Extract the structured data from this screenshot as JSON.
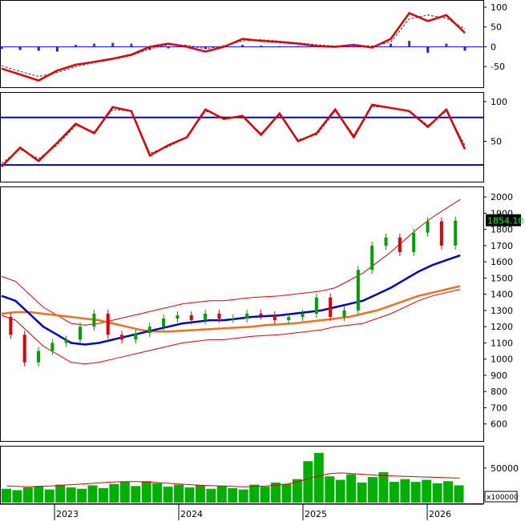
{
  "colors": {
    "background": "#ffffff",
    "frame": "#000000",
    "macd_line": "#e00000",
    "macd_signal": "#333333",
    "hist_pos": "#8b1a8b",
    "hist_neg": "#1a1aff",
    "stoch_k": "#e00000",
    "stoch_d": "#333333",
    "stoch_band": "#0000c0",
    "candle_up": "#00a000",
    "candle_down": "#e00000",
    "bollinger": "#e00000",
    "ma_mid": "#0000c8",
    "ma_long": "#f07020",
    "volume": "#00b000",
    "volume_ma": "#e00000",
    "price_badge_bg": "#000000",
    "price_badge_fg": "#00ff00"
  },
  "chart_data": [
    {
      "type": "line",
      "panel": "macd",
      "ylim": [
        -100,
        110
      ],
      "yticks": [
        "100",
        "50",
        "0",
        "-50"
      ],
      "t": [
        0,
        4,
        8,
        12,
        16,
        20,
        24,
        28,
        32,
        36,
        40,
        44,
        48,
        52,
        56,
        60,
        64,
        68,
        72,
        76,
        80,
        84,
        88,
        92,
        96,
        100
      ],
      "series": [
        {
          "values": [
            -55,
            -70,
            -85,
            -60,
            -45,
            -38,
            -30,
            -20,
            0,
            8,
            0,
            -12,
            0,
            20,
            15,
            12,
            8,
            2,
            0,
            5,
            -2,
            20,
            85,
            65,
            80,
            35
          ]
        },
        {
          "values": [
            -48,
            -62,
            -75,
            -65,
            -50,
            -40,
            -32,
            -22,
            -5,
            5,
            4,
            -5,
            2,
            15,
            18,
            14,
            10,
            5,
            2,
            4,
            2,
            12,
            70,
            80,
            72,
            45
          ]
        }
      ],
      "histogram": [
        -5,
        -8,
        -10,
        -12,
        5,
        8,
        10,
        8,
        -8,
        -4,
        2,
        -6,
        4,
        5,
        3,
        2,
        2,
        1,
        1,
        2,
        -3,
        8,
        15,
        -15,
        8,
        -10
      ]
    },
    {
      "type": "line",
      "panel": "stochastic",
      "ylim": [
        0,
        110
      ],
      "yticks": [
        "100",
        "50"
      ],
      "bands": [
        80,
        20
      ],
      "t": [
        0,
        4,
        8,
        12,
        16,
        20,
        24,
        28,
        32,
        36,
        40,
        44,
        48,
        52,
        56,
        60,
        64,
        68,
        72,
        76,
        80,
        84,
        88,
        92,
        96,
        100
      ],
      "series": [
        {
          "values": [
            18,
            42,
            25,
            48,
            72,
            60,
            93,
            88,
            32,
            45,
            55,
            90,
            78,
            82,
            58,
            85,
            50,
            60,
            90,
            55,
            96,
            92,
            88,
            68,
            90,
            40
          ]
        },
        {
          "values": [
            22,
            40,
            28,
            45,
            70,
            62,
            90,
            88,
            35,
            43,
            55,
            88,
            80,
            80,
            60,
            83,
            52,
            58,
            88,
            58,
            94,
            92,
            88,
            70,
            88,
            45
          ]
        }
      ]
    },
    {
      "type": "candlestick",
      "panel": "price",
      "ylim": [
        500,
        2050
      ],
      "yticks": [
        "2000",
        "1900",
        "1800",
        "1700",
        "1600",
        "1500",
        "1400",
        "1300",
        "1200",
        "1100",
        "1000",
        "900",
        "800",
        "700",
        "600"
      ],
      "last_price": "1854.10",
      "t": [
        0,
        3,
        6,
        9,
        12,
        15,
        18,
        21,
        24,
        27,
        30,
        33,
        36,
        39,
        42,
        45,
        48,
        51,
        54,
        57,
        60,
        63,
        66,
        69,
        72,
        75,
        78,
        81,
        84,
        87,
        90,
        93,
        96,
        99
      ],
      "close": [
        1260,
        1150,
        980,
        1050,
        1100,
        1120,
        1200,
        1280,
        1150,
        1120,
        1160,
        1200,
        1250,
        1270,
        1240,
        1280,
        1250,
        1250,
        1280,
        1270,
        1240,
        1260,
        1280,
        1380,
        1260,
        1300,
        1550,
        1700,
        1750,
        1660,
        1780,
        1850,
        1700,
        1854
      ],
      "ma_mid": [
        1390,
        1360,
        1280,
        1200,
        1150,
        1100,
        1090,
        1100,
        1120,
        1140,
        1160,
        1180,
        1200,
        1220,
        1230,
        1240,
        1240,
        1250,
        1260,
        1265,
        1270,
        1280,
        1290,
        1300,
        1320,
        1340,
        1360,
        1400,
        1440,
        1490,
        1540,
        1580,
        1610,
        1640
      ],
      "ma_long": [
        1280,
        1290,
        1290,
        1280,
        1270,
        1260,
        1250,
        1240,
        1220,
        1200,
        1180,
        1170,
        1170,
        1175,
        1180,
        1185,
        1190,
        1195,
        1200,
        1210,
        1215,
        1220,
        1230,
        1240,
        1250,
        1260,
        1280,
        1300,
        1330,
        1360,
        1390,
        1410,
        1430,
        1450
      ]
    },
    {
      "type": "bar",
      "panel": "volume",
      "ylim": [
        0,
        80000
      ],
      "yticks": [
        "50000"
      ],
      "unit_label": "x100000",
      "values": [
        20000,
        18000,
        22000,
        24000,
        19000,
        26000,
        22000,
        20000,
        25000,
        21000,
        27000,
        30000,
        24000,
        31000,
        28000,
        23000,
        26000,
        22000,
        25000,
        20000,
        24000,
        21000,
        19000,
        26000,
        23000,
        29000,
        27000,
        34000,
        60000,
        72000,
        38000,
        33000,
        41000,
        29000,
        37000,
        44000,
        30000,
        34000,
        30000,
        33000,
        28000,
        31000,
        25000
      ],
      "ma": [
        24000,
        23500,
        23000,
        23500,
        24000,
        25000,
        26000,
        27000,
        28000,
        29000,
        30000,
        30500,
        30500,
        30000,
        29000,
        28000,
        27000,
        26000,
        25000,
        24500,
        24000,
        23500,
        23000,
        23500,
        24000,
        25000,
        27000,
        30000,
        35000,
        39000,
        42000,
        43000,
        42000,
        41000,
        40000,
        39000,
        38500,
        38000,
        37500,
        37000,
        36500,
        36000,
        35500
      ]
    }
  ],
  "x_axis": {
    "labels": [
      "2023",
      "2024",
      "2025",
      "2026"
    ]
  }
}
